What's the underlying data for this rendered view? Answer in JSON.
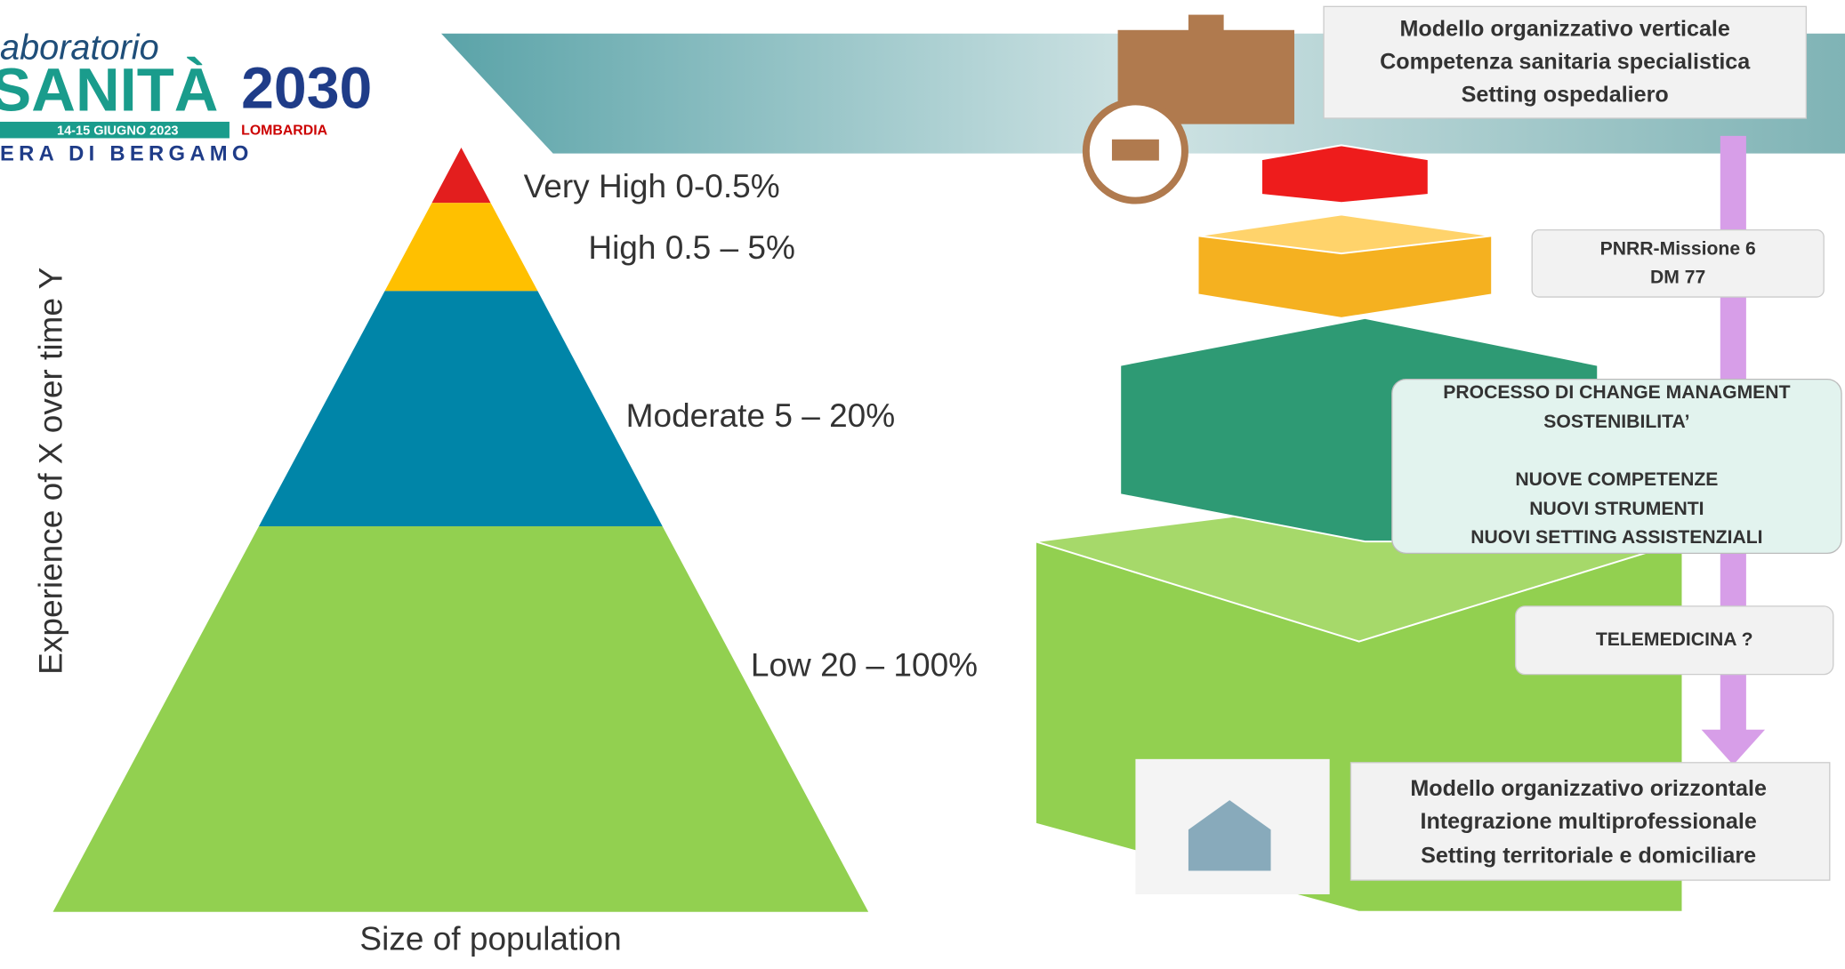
{
  "logo": {
    "line1": "aboratorio",
    "sanita": "SANITÀ",
    "year": "2030",
    "dates": "14-15 GIUGNO 2023",
    "region": "LOMBARDIA",
    "place": "ERA DI BERGAMO"
  },
  "pyramid": {
    "levels": [
      "Very High 0-0.5%",
      "High 0.5 – 5%",
      "Moderate 5 – 20%",
      "Low 20 – 100%"
    ],
    "y_label": "Experience of X over  time Y",
    "x_label": "Size of population"
  },
  "top_box": [
    "Modello organizzativo verticale",
    "Competenza sanitaria specialistica",
    "Setting ospedaliero"
  ],
  "pnrr_box": [
    "PNRR-Missione 6",
    "DM 77"
  ],
  "process_box": [
    "PROCESSO DI CHANGE MANAGMENT",
    "SOSTENIBILITA’",
    "NUOVE COMPETENZE",
    "NUOVI STRUMENTI",
    "NUOVI SETTING ASSISTENZIALI"
  ],
  "telemedicina_box": "TELEMEDICINA ?",
  "bottom_box": [
    "Modello organizzativo orizzontale",
    "Integrazione multiprofessionale",
    "Setting territoriale e domiciliare"
  ]
}
